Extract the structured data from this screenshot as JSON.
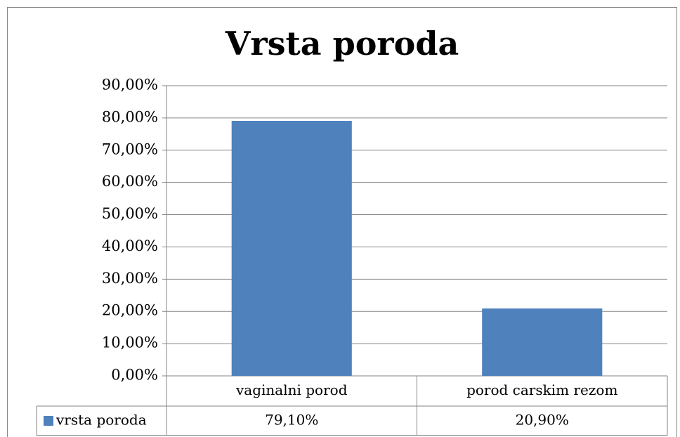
{
  "chart_data": {
    "type": "bar",
    "title": "Vrsta poroda",
    "categories": [
      "vaginalni porod",
      "porod carskim rezom"
    ],
    "series": [
      {
        "name": "vrsta poroda",
        "color": "#4f81bd",
        "values": [
          79.1,
          20.9
        ],
        "value_labels": [
          "79,10%",
          "20,90%"
        ]
      }
    ],
    "ylim": [
      0,
      90
    ],
    "yticks": [
      {
        "value": 0,
        "label": "0,00%"
      },
      {
        "value": 10,
        "label": "10,00%"
      },
      {
        "value": 20,
        "label": "20,00%"
      },
      {
        "value": 30,
        "label": "30,00%"
      },
      {
        "value": 40,
        "label": "40,00%"
      },
      {
        "value": 50,
        "label": "50,00%"
      },
      {
        "value": 60,
        "label": "60,00%"
      },
      {
        "value": 70,
        "label": "70,00%"
      },
      {
        "value": 80,
        "label": "80,00%"
      },
      {
        "value": 90,
        "label": "90,00%"
      }
    ],
    "grid": true,
    "legend": "bottom"
  }
}
